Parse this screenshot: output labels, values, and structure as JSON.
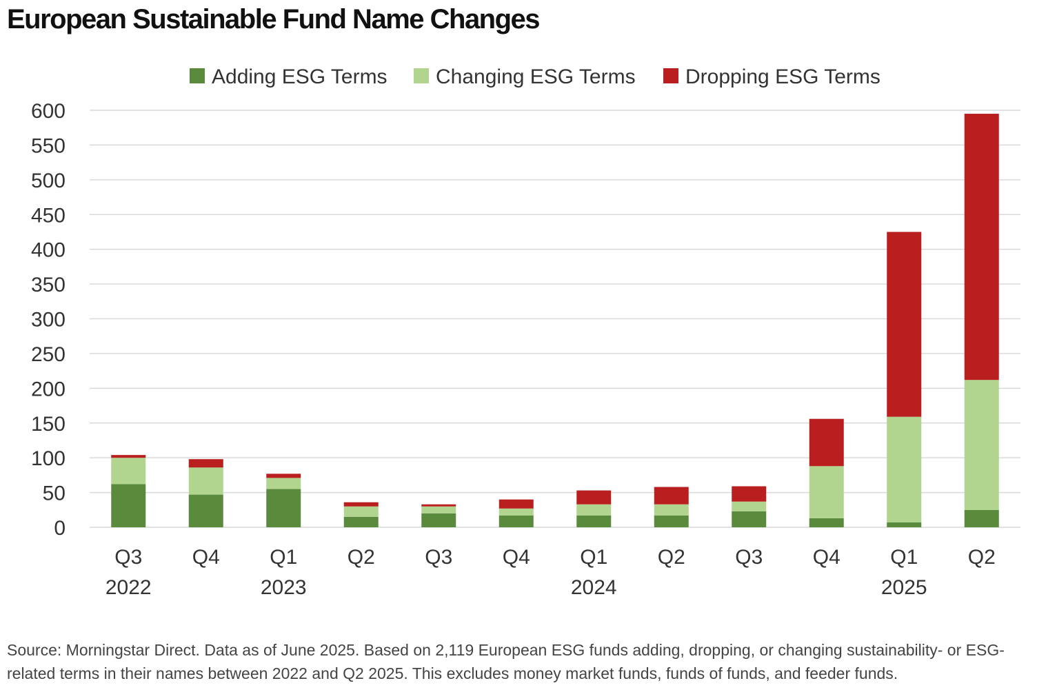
{
  "title": "European Sustainable Fund Name Changes",
  "source_note": "Source: Morningstar Direct. Data as of June 2025. Based on 2,119 European ESG funds adding, dropping, or changing sustainability- or ESG-related terms in their names between 2022 and Q2 2025. This excludes money market funds, funds of funds, and feeder funds.",
  "chart_data": {
    "type": "bar",
    "stacked": true,
    "categories": [
      "Q3",
      "Q4",
      "Q1",
      "Q2",
      "Q3",
      "Q4",
      "Q1",
      "Q2",
      "Q3",
      "Q4",
      "Q1",
      "Q2"
    ],
    "year_labels": [
      "2022",
      "",
      "2023",
      "",
      "",
      "",
      "2024",
      "",
      "",
      "",
      "2025",
      ""
    ],
    "series": [
      {
        "name": "Adding ESG Terms",
        "color": "#5a8a3c",
        "values": [
          62,
          47,
          55,
          15,
          20,
          17,
          17,
          17,
          23,
          13,
          7,
          25
        ]
      },
      {
        "name": "Changing ESG Terms",
        "color": "#b1d48f",
        "values": [
          38,
          39,
          16,
          15,
          10,
          10,
          16,
          16,
          14,
          75,
          152,
          187
        ]
      },
      {
        "name": "Dropping ESG Terms",
        "color": "#b91f1f",
        "values": [
          4,
          12,
          6,
          6,
          3,
          13,
          20,
          25,
          22,
          68,
          266,
          383
        ]
      }
    ],
    "yticks": [
      0,
      50,
      100,
      150,
      200,
      250,
      300,
      350,
      400,
      450,
      500,
      550,
      600
    ],
    "ylim": [
      0,
      600
    ],
    "grid": true,
    "legend_position": "top-center",
    "xlabel": "",
    "ylabel": ""
  }
}
